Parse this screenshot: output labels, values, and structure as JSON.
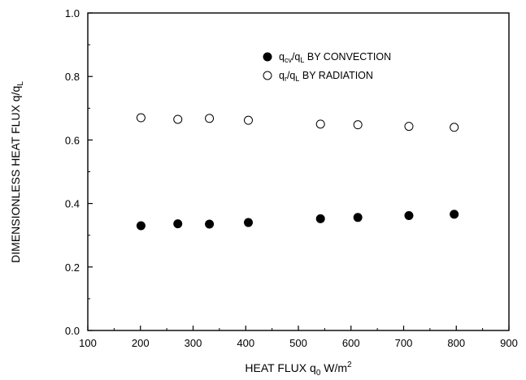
{
  "chart_data": {
    "type": "scatter",
    "xlabel": "HEAT FLUX q",
    "xlabel_sub": "0",
    "xlabel_unit": " W/m",
    "xlabel_sup": "2",
    "ylabel": "DIMENSIONLESS HEAT FLUX q/q",
    "ylabel_sub": "L",
    "xlim": [
      100,
      900
    ],
    "ylim": [
      0.0,
      1.0
    ],
    "x_ticks": [
      100,
      200,
      300,
      400,
      500,
      600,
      700,
      800,
      900
    ],
    "y_ticks": [
      0.0,
      0.2,
      0.4,
      0.6,
      0.8,
      1.0
    ],
    "x_tick_labels": [
      "100",
      "200",
      "300",
      "400",
      "500",
      "600",
      "700",
      "800",
      "900"
    ],
    "y_tick_labels": [
      "0.0",
      "0.2",
      "0.4",
      "0.6",
      "0.8",
      "1.0"
    ],
    "grid": false,
    "legend_position": "top-right",
    "series": [
      {
        "name": "q_cv/q_L BY CONVECTION",
        "legend": {
          "q": "q",
          "sub1": "cv",
          "mid": "/q",
          "sub2": "L",
          "tail": " BY CONVECTION"
        },
        "marker": "filled-circle",
        "color": "#000000",
        "points": [
          {
            "x": 201,
            "y": 0.33
          },
          {
            "x": 271,
            "y": 0.336
          },
          {
            "x": 331,
            "y": 0.335
          },
          {
            "x": 405,
            "y": 0.34
          },
          {
            "x": 542,
            "y": 0.352
          },
          {
            "x": 613,
            "y": 0.356
          },
          {
            "x": 710,
            "y": 0.362
          },
          {
            "x": 796,
            "y": 0.366
          }
        ]
      },
      {
        "name": "q_r/q_L BY RADIATION",
        "legend": {
          "q": "q",
          "sub1": "r",
          "mid": "/q",
          "sub2": "L",
          "tail": " BY RADIATION"
        },
        "marker": "open-circle",
        "color": "#000000",
        "points": [
          {
            "x": 201,
            "y": 0.67
          },
          {
            "x": 271,
            "y": 0.665
          },
          {
            "x": 331,
            "y": 0.668
          },
          {
            "x": 405,
            "y": 0.662
          },
          {
            "x": 542,
            "y": 0.65
          },
          {
            "x": 613,
            "y": 0.648
          },
          {
            "x": 710,
            "y": 0.643
          },
          {
            "x": 796,
            "y": 0.64
          }
        ]
      }
    ]
  }
}
